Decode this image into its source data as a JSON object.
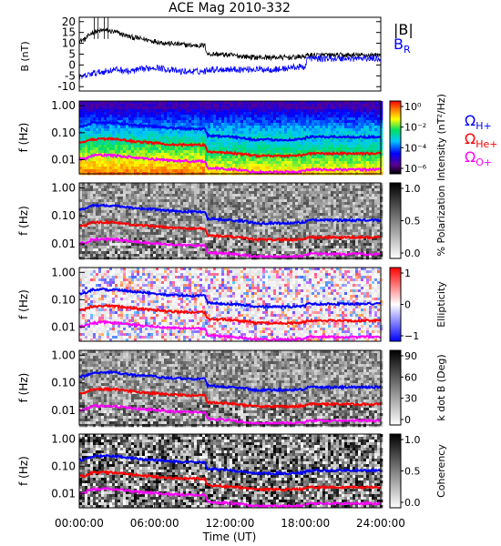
{
  "title": "ACE Mag 2010-332",
  "time_axis": {
    "label": "Time (UT)",
    "ticks": [
      "00:00:00",
      "06:00:00",
      "12:00:00",
      "18:00:00",
      "24:00:00"
    ],
    "range_hours": [
      0,
      24
    ]
  },
  "freq_ticks": [
    "1.00",
    "0.10",
    "0.01"
  ],
  "gyro_lines": {
    "h": {
      "label": "Ω",
      "sub": "H+",
      "color": "#0000ff"
    },
    "he": {
      "label": "Ω",
      "sub": "He+",
      "color": "#ff0000"
    },
    "o": {
      "label": "Ω",
      "sub": "O+",
      "color": "#ff00ff"
    }
  },
  "chart_data": [
    {
      "type": "line",
      "panel": "B",
      "ylabel": "B (nT)",
      "ylim": [
        -12,
        22
      ],
      "yticks": [
        "20",
        "15",
        "10",
        "5",
        "0",
        "-5",
        "-10"
      ],
      "legend": [
        {
          "name": "|B|",
          "color": "#000000"
        },
        {
          "name": "B",
          "sub": "R",
          "color": "#0000ff"
        }
      ],
      "x_hours": [
        0,
        0.5,
        1,
        2,
        3,
        4,
        5,
        6,
        7,
        8,
        9,
        10,
        10.2,
        11,
        12,
        13,
        14,
        15,
        16,
        17,
        18,
        18.1,
        19,
        20,
        21,
        22,
        23,
        24
      ],
      "series": [
        {
          "name": "|B|",
          "color": "#000000",
          "values": [
            11,
            12,
            15,
            16,
            15,
            13,
            12,
            11,
            10,
            9.5,
            9,
            9,
            5,
            5,
            4.5,
            4,
            3.5,
            3.5,
            3.5,
            3.5,
            4,
            4.5,
            4.5,
            4.5,
            4.5,
            4.5,
            4.5,
            4.5
          ]
        },
        {
          "name": "B_R",
          "color": "#0000ff",
          "values": [
            -6,
            -5,
            -4,
            -3,
            -2,
            -3,
            -2,
            -1,
            -2,
            -3,
            -3,
            -3,
            -2,
            -2,
            -2,
            -2,
            -2,
            -2,
            -2,
            -1,
            -1,
            3,
            3,
            3,
            3,
            3,
            3,
            3
          ]
        }
      ]
    },
    {
      "type": "heatmap",
      "panel": "Intensity",
      "ylabel": "f (Hz)",
      "colorbar_label": "Intensity (nT²/Hz)",
      "colorbar_ticks": [
        "10⁰",
        "10⁻²",
        "10⁻⁴",
        "10⁻⁶"
      ]
    },
    {
      "type": "heatmap",
      "panel": "Polarization",
      "ylabel": "f (Hz)",
      "colorbar_label": "% Polarization",
      "colorbar_ticks": [
        "1.0",
        "0.5",
        "0.0"
      ]
    },
    {
      "type": "heatmap",
      "panel": "Ellipticity",
      "ylabel": "f (Hz)",
      "colorbar_label": "Ellipticity",
      "colorbar_ticks": [
        "1",
        "0",
        "−1"
      ]
    },
    {
      "type": "heatmap",
      "panel": "k dot B",
      "ylabel": "f (Hz)",
      "colorbar_label": "k dot B (Deg)",
      "colorbar_ticks": [
        "90",
        "60",
        "30",
        "0"
      ]
    },
    {
      "type": "heatmap",
      "panel": "Coherency",
      "ylabel": "f (Hz)",
      "colorbar_label": "Coherency",
      "colorbar_ticks": [
        "1.0",
        "0.5",
        "0.0"
      ]
    },
    {
      "type": "line",
      "panel": "gyrofrequencies",
      "yscale": "log",
      "ylim": [
        0.003,
        1.5
      ],
      "x_hours": [
        0,
        0.5,
        1,
        2,
        3,
        4,
        5,
        6,
        7,
        8,
        9,
        10,
        10.2,
        11,
        12,
        13,
        14,
        15,
        16,
        17,
        18,
        18.1,
        19,
        20,
        21,
        22,
        23,
        24
      ],
      "series": [
        {
          "name": "Ω H+",
          "color": "#0000ff",
          "values": [
            0.17,
            0.18,
            0.23,
            0.24,
            0.23,
            0.2,
            0.18,
            0.17,
            0.15,
            0.145,
            0.14,
            0.14,
            0.08,
            0.075,
            0.07,
            0.065,
            0.055,
            0.055,
            0.055,
            0.055,
            0.06,
            0.07,
            0.07,
            0.07,
            0.07,
            0.07,
            0.07,
            0.07
          ]
        },
        {
          "name": "Ω He+",
          "color": "#ff0000",
          "values": [
            0.042,
            0.045,
            0.057,
            0.06,
            0.057,
            0.05,
            0.045,
            0.042,
            0.038,
            0.036,
            0.035,
            0.035,
            0.02,
            0.019,
            0.018,
            0.016,
            0.014,
            0.014,
            0.014,
            0.014,
            0.015,
            0.017,
            0.017,
            0.017,
            0.017,
            0.017,
            0.017,
            0.017
          ]
        },
        {
          "name": "Ω O+",
          "color": "#ff00ff",
          "values": [
            0.0105,
            0.011,
            0.014,
            0.015,
            0.014,
            0.0125,
            0.011,
            0.0105,
            0.0095,
            0.009,
            0.0088,
            0.0088,
            0.005,
            0.0047,
            0.0045,
            0.004,
            0.0035,
            0.0035,
            0.0035,
            0.0035,
            0.0038,
            0.0043,
            0.0043,
            0.0043,
            0.0043,
            0.0043,
            0.0043,
            0.0043
          ]
        }
      ]
    }
  ]
}
